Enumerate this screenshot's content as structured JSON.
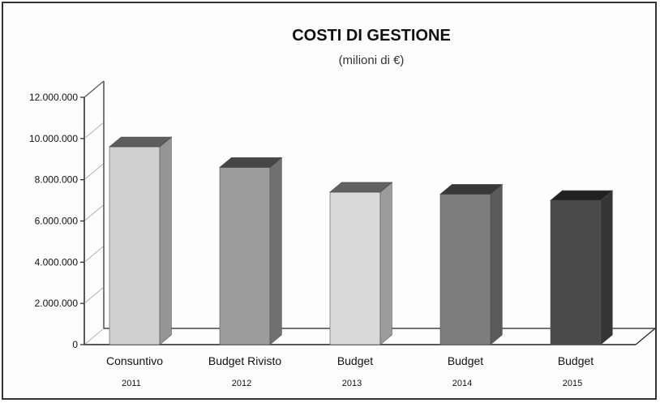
{
  "chart_data": {
    "type": "bar",
    "title": "COSTI DI GESTIONE",
    "subtitle": "(milioni di €)",
    "categories": [
      "Consuntivo",
      "Budget Rivisto",
      "Budget",
      "Budget",
      "Budget"
    ],
    "years": [
      "2011",
      "2012",
      "2013",
      "2014",
      "2015"
    ],
    "values": [
      9600000,
      8600000,
      7400000,
      7300000,
      7000000
    ],
    "colors": [
      "#cfcfcf",
      "#9b9b9b",
      "#d9d9d9",
      "#7d7d7d",
      "#4a4a4a"
    ],
    "ylim": [
      0,
      12000000
    ],
    "yticks": [
      "0",
      "2.000.000",
      "4.000.000",
      "6.000.000",
      "8.000.000",
      "10.000.000",
      "12.000.000"
    ],
    "grid": false,
    "three_d": true
  }
}
